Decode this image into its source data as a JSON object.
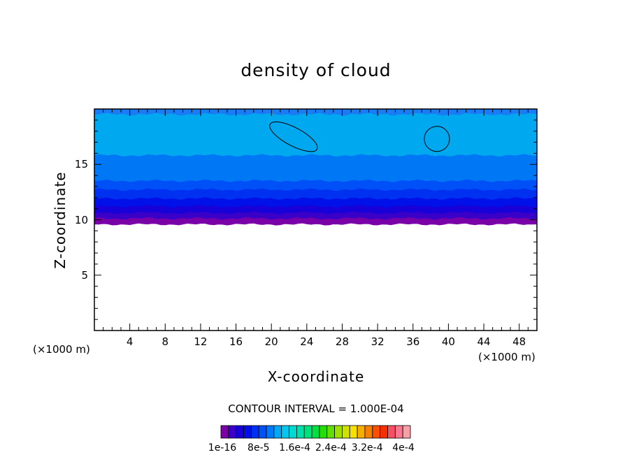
{
  "chart_data": {
    "type": "heatmap",
    "title": "density of cloud",
    "xlabel": "X-coordinate",
    "ylabel": "Z-coordinate",
    "x_unit": "(×1000 m)",
    "y_unit": "(×1000 m)",
    "xlim": [
      0,
      50
    ],
    "ylim": [
      0,
      20
    ],
    "x_ticks": [
      4,
      8,
      12,
      16,
      20,
      24,
      28,
      32,
      36,
      40,
      44,
      48
    ],
    "y_ticks": [
      5,
      10,
      15
    ],
    "contour_interval_label": "CONTOUR INTERVAL = 1.000E-04",
    "colorbar": {
      "colors": [
        "#7a00a8",
        "#3a00c8",
        "#1800d8",
        "#0010e8",
        "#0030f0",
        "#0050f8",
        "#0078f8",
        "#00a8f8",
        "#00c8f0",
        "#00d8d0",
        "#00e0a8",
        "#00e080",
        "#00e040",
        "#20e000",
        "#60e000",
        "#a0e000",
        "#d0e000",
        "#f8e000",
        "#f8b000",
        "#f88000",
        "#f85000",
        "#f83000",
        "#f85060",
        "#f87890",
        "#f8a0a8"
      ],
      "tick_labels": [
        "1e-16",
        "8e-5",
        "1.6e-4",
        "2.4e-4",
        "3.2e-4",
        "4e-4"
      ]
    },
    "vertical_profile": [
      {
        "z_top": 20.0,
        "z_bottom": 19.5,
        "color": "#1a7cf5"
      },
      {
        "z_top": 19.5,
        "z_bottom": 15.8,
        "color": "#00a8f0"
      },
      {
        "z_top": 15.8,
        "z_bottom": 13.5,
        "color": "#0078f5"
      },
      {
        "z_top": 13.5,
        "z_bottom": 12.7,
        "color": "#0050f8"
      },
      {
        "z_top": 12.7,
        "z_bottom": 11.9,
        "color": "#0030f0"
      },
      {
        "z_top": 11.9,
        "z_bottom": 11.2,
        "color": "#0010e8"
      },
      {
        "z_top": 11.2,
        "z_bottom": 10.6,
        "color": "#1800d8"
      },
      {
        "z_top": 10.6,
        "z_bottom": 10.1,
        "color": "#3a00c8"
      },
      {
        "z_top": 10.1,
        "z_bottom": 9.6,
        "color": "#7a00a8"
      }
    ],
    "cloud_base_km": 9.6,
    "contour_regions": [
      {
        "x_center": 22.5,
        "z_center": 17.5
      },
      {
        "x_center": 38.7,
        "z_center": 17.3
      }
    ]
  }
}
